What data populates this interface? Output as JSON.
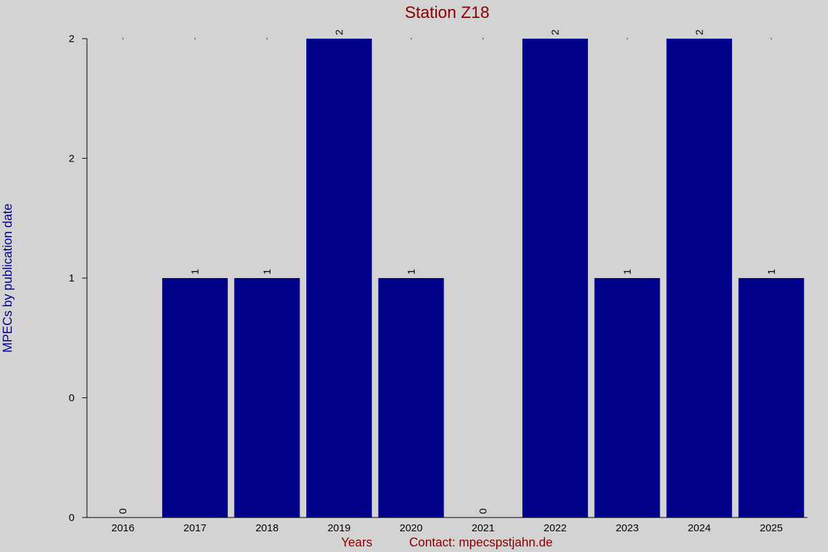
{
  "chart_data": {
    "type": "bar",
    "title": "Station Z18",
    "xlabel": "Years",
    "ylabel": "MPECs by publication date",
    "contact": "Contact: mpecspstjahn.de",
    "categories": [
      "2016",
      "2017",
      "2018",
      "2019",
      "2020",
      "2021",
      "2022",
      "2023",
      "2024",
      "2025"
    ],
    "values": [
      0,
      1,
      1,
      2,
      1,
      0,
      2,
      1,
      2,
      1
    ],
    "ylim": [
      0,
      2
    ],
    "yticks": [
      0,
      0.5,
      1,
      1.5,
      2
    ],
    "yticklabels": [
      "0",
      "0",
      "1",
      "2",
      "2"
    ],
    "bar_color": "#00008b",
    "background": "#d3d3d3"
  }
}
